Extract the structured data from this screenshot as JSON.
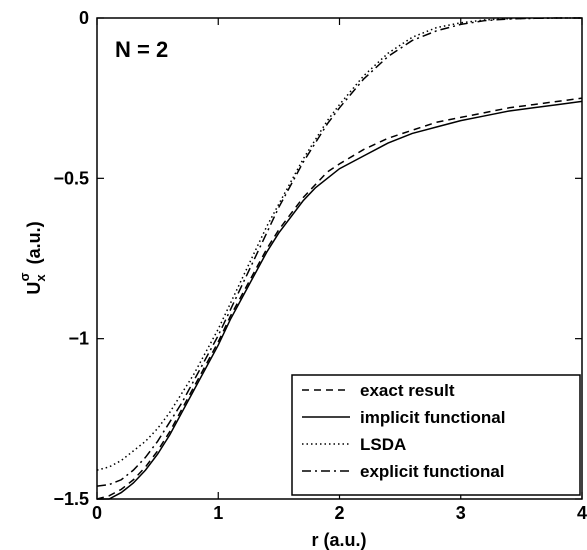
{
  "chart_data": {
    "type": "line",
    "annotation": "N = 2",
    "xlabel": "r  (a.u.)",
    "ylabel": {
      "base": "U",
      "sub": "x",
      "sup": "σ",
      "unit": "(a.u.)"
    },
    "xlim": [
      0,
      4
    ],
    "ylim": [
      -1.5,
      0
    ],
    "xticks": [
      0,
      1,
      2,
      3,
      4
    ],
    "xtick_labels": [
      "0",
      "1",
      "2",
      "3",
      "4"
    ],
    "yticks": [
      0,
      -0.5,
      -1,
      -1.5
    ],
    "ytick_labels": [
      "0",
      "−0.5",
      "−1",
      "−1.5"
    ],
    "grid": false,
    "legend_position": "bottom-right",
    "series": [
      {
        "name": "exact result",
        "style": "dashed",
        "color": "#000000",
        "x": [
          0,
          0.1,
          0.2,
          0.3,
          0.4,
          0.5,
          0.6,
          0.7,
          0.8,
          0.9,
          1.0,
          1.1,
          1.2,
          1.3,
          1.4,
          1.5,
          1.6,
          1.7,
          1.8,
          1.9,
          2.0,
          2.2,
          2.4,
          2.6,
          2.8,
          3.0,
          3.2,
          3.4,
          3.6,
          3.8,
          4.0
        ],
        "y": [
          -1.5,
          -1.49,
          -1.47,
          -1.44,
          -1.4,
          -1.35,
          -1.29,
          -1.22,
          -1.15,
          -1.08,
          -1.01,
          -0.93,
          -0.86,
          -0.79,
          -0.72,
          -0.66,
          -0.61,
          -0.56,
          -0.52,
          -0.48,
          -0.455,
          -0.41,
          -0.375,
          -0.35,
          -0.325,
          -0.31,
          -0.295,
          -0.28,
          -0.27,
          -0.26,
          -0.25
        ]
      },
      {
        "name": "implicit functional",
        "style": "solid",
        "color": "#000000",
        "x": [
          0,
          0.1,
          0.2,
          0.3,
          0.4,
          0.5,
          0.6,
          0.7,
          0.8,
          0.9,
          1.0,
          1.1,
          1.2,
          1.3,
          1.4,
          1.5,
          1.6,
          1.7,
          1.8,
          1.9,
          2.0,
          2.2,
          2.4,
          2.6,
          2.8,
          3.0,
          3.2,
          3.4,
          3.6,
          3.8,
          4.0
        ],
        "y": [
          -1.5,
          -1.5,
          -1.48,
          -1.45,
          -1.41,
          -1.36,
          -1.3,
          -1.23,
          -1.16,
          -1.09,
          -1.02,
          -0.94,
          -0.87,
          -0.8,
          -0.73,
          -0.67,
          -0.62,
          -0.57,
          -0.53,
          -0.5,
          -0.47,
          -0.43,
          -0.39,
          -0.36,
          -0.34,
          -0.32,
          -0.305,
          -0.29,
          -0.28,
          -0.27,
          -0.26
        ]
      },
      {
        "name": "LSDA",
        "style": "dotted",
        "color": "#000000",
        "x": [
          0,
          0.1,
          0.2,
          0.3,
          0.4,
          0.5,
          0.6,
          0.7,
          0.8,
          0.9,
          1.0,
          1.1,
          1.2,
          1.3,
          1.4,
          1.5,
          1.6,
          1.7,
          1.8,
          1.9,
          2.0,
          2.2,
          2.4,
          2.6,
          2.8,
          3.0,
          3.2,
          3.4,
          3.6,
          3.8,
          4.0
        ],
        "y": [
          -1.41,
          -1.4,
          -1.38,
          -1.35,
          -1.32,
          -1.28,
          -1.23,
          -1.17,
          -1.11,
          -1.04,
          -0.97,
          -0.89,
          -0.81,
          -0.73,
          -0.65,
          -0.58,
          -0.51,
          -0.44,
          -0.38,
          -0.32,
          -0.27,
          -0.18,
          -0.11,
          -0.06,
          -0.03,
          -0.015,
          -0.006,
          -0.002,
          -0.001,
          0,
          0
        ]
      },
      {
        "name": "explicit functional",
        "style": "dashdot",
        "color": "#000000",
        "x": [
          0,
          0.1,
          0.2,
          0.3,
          0.4,
          0.5,
          0.6,
          0.7,
          0.8,
          0.9,
          1.0,
          1.1,
          1.2,
          1.3,
          1.4,
          1.5,
          1.6,
          1.7,
          1.8,
          1.9,
          2.0,
          2.2,
          2.4,
          2.6,
          2.8,
          3.0,
          3.2,
          3.4,
          3.6,
          3.8,
          4.0
        ],
        "y": [
          -1.46,
          -1.455,
          -1.44,
          -1.41,
          -1.37,
          -1.32,
          -1.26,
          -1.2,
          -1.13,
          -1.06,
          -0.99,
          -0.91,
          -0.83,
          -0.75,
          -0.67,
          -0.59,
          -0.52,
          -0.45,
          -0.39,
          -0.33,
          -0.28,
          -0.19,
          -0.12,
          -0.07,
          -0.04,
          -0.02,
          -0.008,
          -0.003,
          -0.001,
          0,
          0
        ]
      }
    ]
  }
}
